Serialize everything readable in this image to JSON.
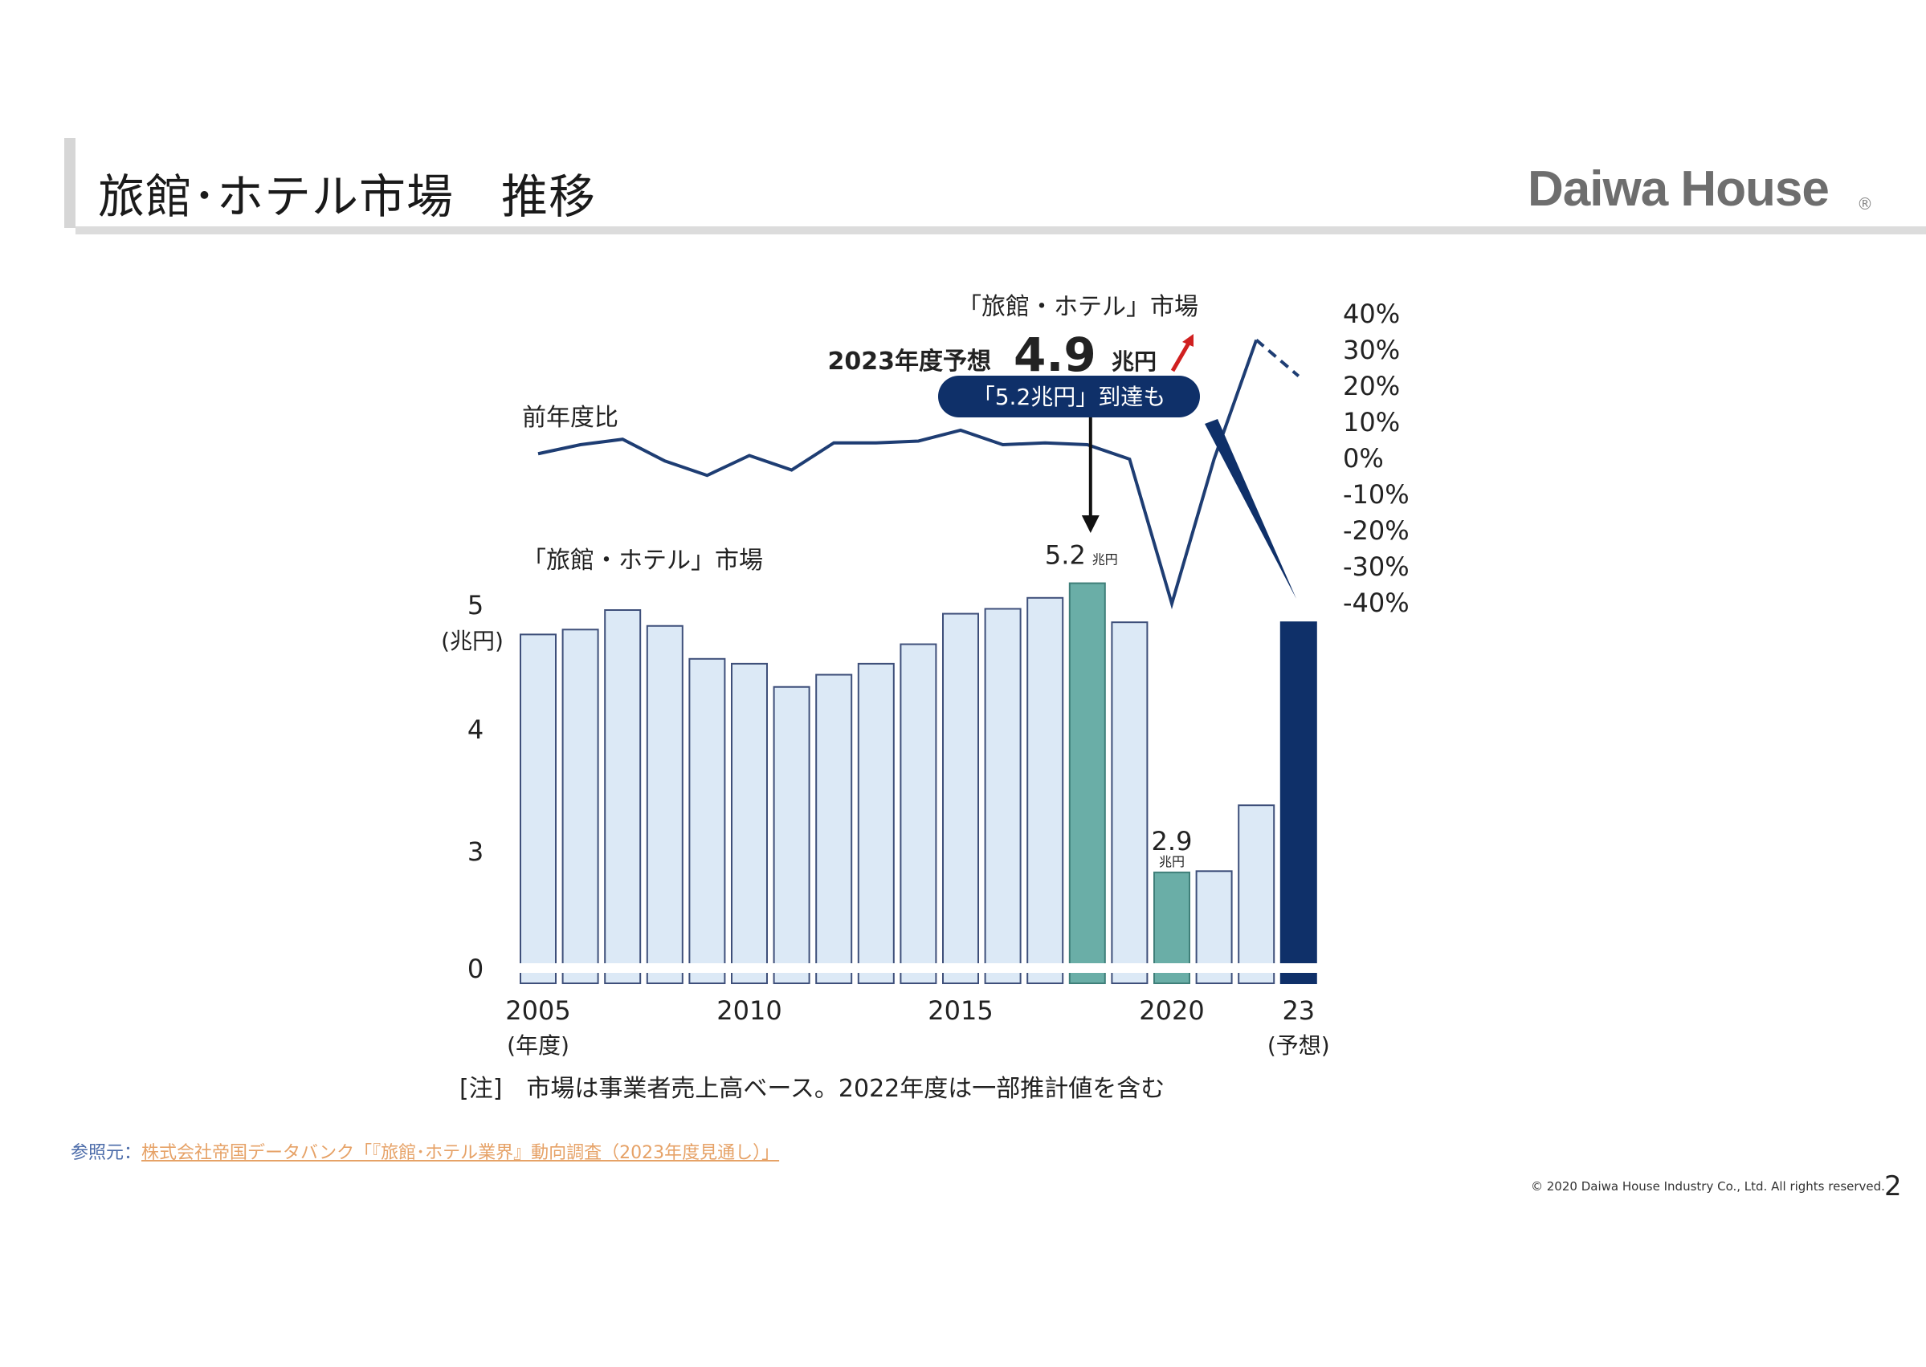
{
  "header": {
    "title": "旅館･ホテル市場　推移",
    "logo": "Daiwa House",
    "logo_mark": "®"
  },
  "chart_data": {
    "type": "bar",
    "title": "「旅館・ホテル」市場",
    "y_unit": "(兆円)",
    "y_ticks": [
      "0",
      "3",
      "4",
      "5"
    ],
    "x_tick_labels": [
      {
        "year": 2005,
        "label": "2005",
        "sub": "(年度)"
      },
      {
        "year": 2010,
        "label": "2010",
        "sub": ""
      },
      {
        "year": 2015,
        "label": "2015",
        "sub": ""
      },
      {
        "year": 2020,
        "label": "2020",
        "sub": ""
      },
      {
        "year": 2023,
        "label": "23",
        "sub": "(予想)"
      }
    ],
    "categories": [
      "2005",
      "2006",
      "2007",
      "2008",
      "2009",
      "2010",
      "2011",
      "2012",
      "2013",
      "2014",
      "2015",
      "2016",
      "2017",
      "2018",
      "2019",
      "2020",
      "2021",
      "2022",
      "2023"
    ],
    "values": [
      4.8,
      4.84,
      5.0,
      4.87,
      4.6,
      4.56,
      4.37,
      4.47,
      4.56,
      4.72,
      4.97,
      5.01,
      5.1,
      5.22,
      4.9,
      2.85,
      2.86,
      3.4,
      4.9
    ],
    "highlights": {
      "2018": "teal",
      "2020": "teal",
      "2023": "navy"
    },
    "annotations": [
      {
        "year": 2018,
        "value": "5.2",
        "unit": "兆円"
      },
      {
        "year": 2020,
        "value": "2.9",
        "unit": "兆円"
      }
    ],
    "forecast": {
      "title": "「旅館・ホテル」市場",
      "prefix": "2023年度予想",
      "value": "4.9",
      "unit": "兆円",
      "callout": "「5.2兆円」到達も"
    },
    "line_series": {
      "name": "前年度比",
      "y_ticks": [
        "40%",
        "30%",
        "20%",
        "10%",
        "0%",
        "-10%",
        "-20%",
        "-30%",
        "-40%"
      ],
      "values": [
        1.5,
        4.0,
        5.5,
        -0.5,
        -4.5,
        1.0,
        -3.0,
        4.5,
        4.5,
        5.0,
        8.0,
        4.0,
        4.5,
        4.0,
        0.0,
        -40.0,
        0.0,
        33.0,
        23.0
      ]
    },
    "note": "[注]　市場は事業者売上高ベース。2022年度は一部推計値を含む",
    "colors": {
      "bar": "#dce9f6",
      "bar_stroke": "#3e4f7a",
      "teal": "#6aaea7",
      "navy": "#0f3069",
      "line": "#1e3d73",
      "arrow_red": "#d02020"
    }
  },
  "footer": {
    "source_label": "参照元：",
    "source_text": "株式会社帝国データバンク「『旅館･ホテル業界』動向調査（2023年度見通し）」",
    "copyright": "© 2020 Daiwa House Industry Co., Ltd. All rights reserved.",
    "page_number": "2"
  }
}
